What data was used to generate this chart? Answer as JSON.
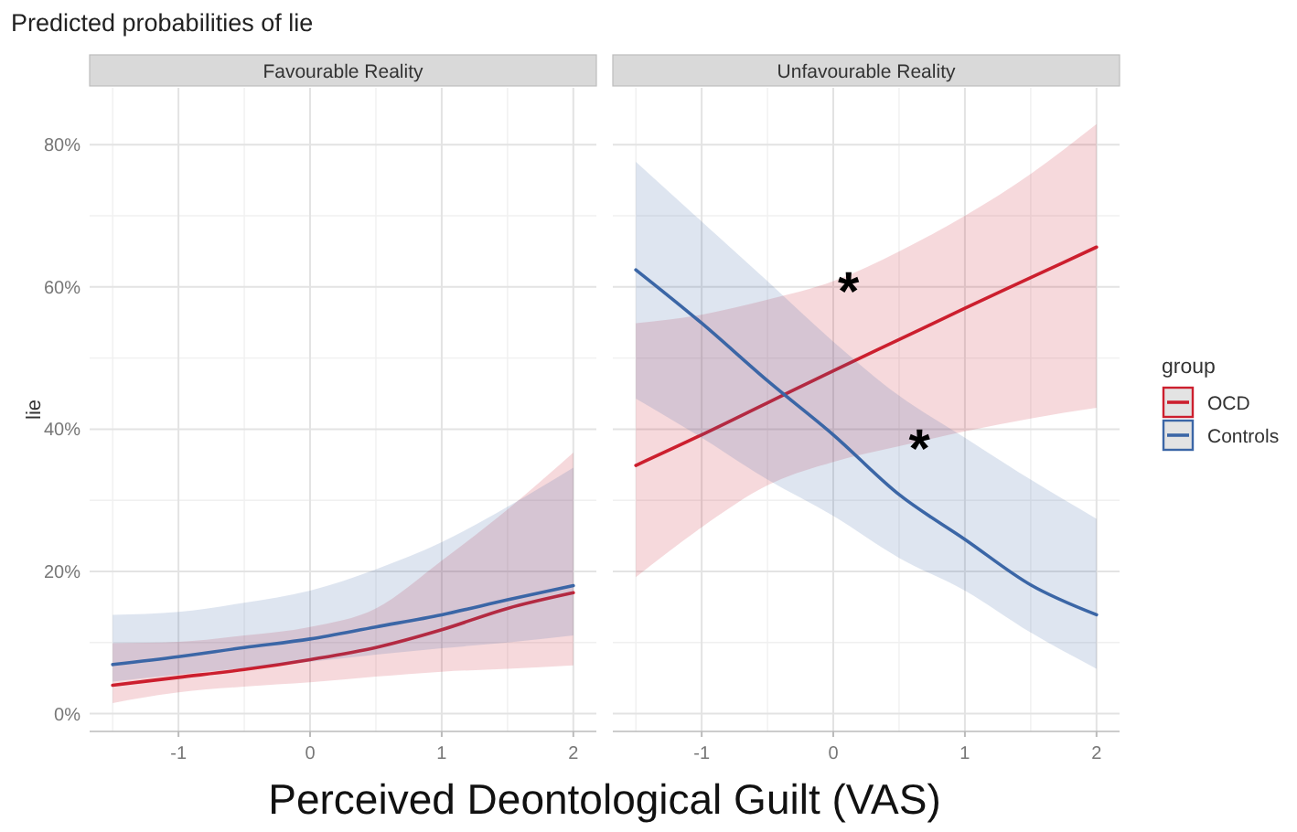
{
  "chart_data": [
    {
      "type": "line",
      "title": "Predicted probabilities of lie",
      "subtitle": "Favourable Reality",
      "xlabel": "Perceived Deontological Guilt (VAS)",
      "ylabel": "lie",
      "x": [
        -1.5,
        -1,
        -0.5,
        0,
        0.5,
        1,
        1.5,
        2
      ],
      "series": [
        {
          "name": "OCD",
          "color": "#cc1f2e",
          "values": [
            4.0,
            5.1,
            6.2,
            7.6,
            9.3,
            11.8,
            14.8,
            17.0
          ],
          "lower": [
            1.5,
            3.0,
            3.8,
            4.4,
            5.2,
            5.9,
            6.3,
            6.8
          ],
          "upper": [
            9.9,
            10.1,
            11.0,
            12.2,
            14.8,
            21.5,
            28.7,
            36.7
          ]
        },
        {
          "name": "Controls",
          "color": "#3b66a6",
          "values": [
            6.9,
            8.0,
            9.3,
            10.5,
            12.2,
            13.9,
            16.0,
            18.0
          ],
          "lower": [
            4.5,
            5.5,
            6.4,
            7.3,
            8.3,
            9.2,
            10.0,
            11.0
          ],
          "upper": [
            13.9,
            14.3,
            15.6,
            17.3,
            20.3,
            24.1,
            29.1,
            34.6
          ]
        }
      ],
      "xlim": [
        -1.675,
        2.175
      ],
      "ylim": [
        -2.5,
        88
      ],
      "xticks": [
        -1,
        0,
        1,
        2
      ],
      "yticks": [
        {
          "value": 0,
          "label": "0%"
        },
        {
          "value": 20,
          "label": "20%"
        },
        {
          "value": 40,
          "label": "40%"
        },
        {
          "value": 60,
          "label": "60%"
        },
        {
          "value": 80,
          "label": "80%"
        }
      ],
      "grid": true,
      "legend": "right",
      "legend_title": "group"
    },
    {
      "type": "line",
      "subtitle": "Unfavourable Reality",
      "x": [
        -1.5,
        -1,
        -0.5,
        0,
        0.5,
        1,
        1.5,
        2
      ],
      "series": [
        {
          "color": "#cc1f2e",
          "values": [
            34.9,
            39.2,
            43.7,
            48.2,
            52.6,
            57.0,
            61.3,
            65.6
          ],
          "lower": [
            19.2,
            26.2,
            32.1,
            35.4,
            37.6,
            39.7,
            41.5,
            43.0
          ],
          "upper": [
            54.9,
            56.1,
            58.2,
            60.8,
            65.0,
            70.0,
            75.9,
            82.9
          ]
        },
        {
          "color": "#3b66a6",
          "values": [
            62.4,
            54.9,
            46.8,
            39.2,
            30.8,
            24.5,
            18.1,
            13.9
          ],
          "lower": [
            44.3,
            38.8,
            32.9,
            27.8,
            21.9,
            17.3,
            11.4,
            6.3
          ],
          "upper": [
            77.6,
            69.2,
            60.8,
            52.3,
            44.7,
            38.8,
            32.9,
            27.4
          ]
        }
      ],
      "annotations": [
        "*",
        "*"
      ],
      "xlim": [
        -1.675,
        2.175
      ],
      "ylim": [
        -2.5,
        88
      ],
      "xticks": [
        -1,
        0,
        1,
        2
      ],
      "yticks": [
        0,
        20,
        40,
        60,
        80
      ],
      "grid": true,
      "tick_labels": "x"
    }
  ]
}
